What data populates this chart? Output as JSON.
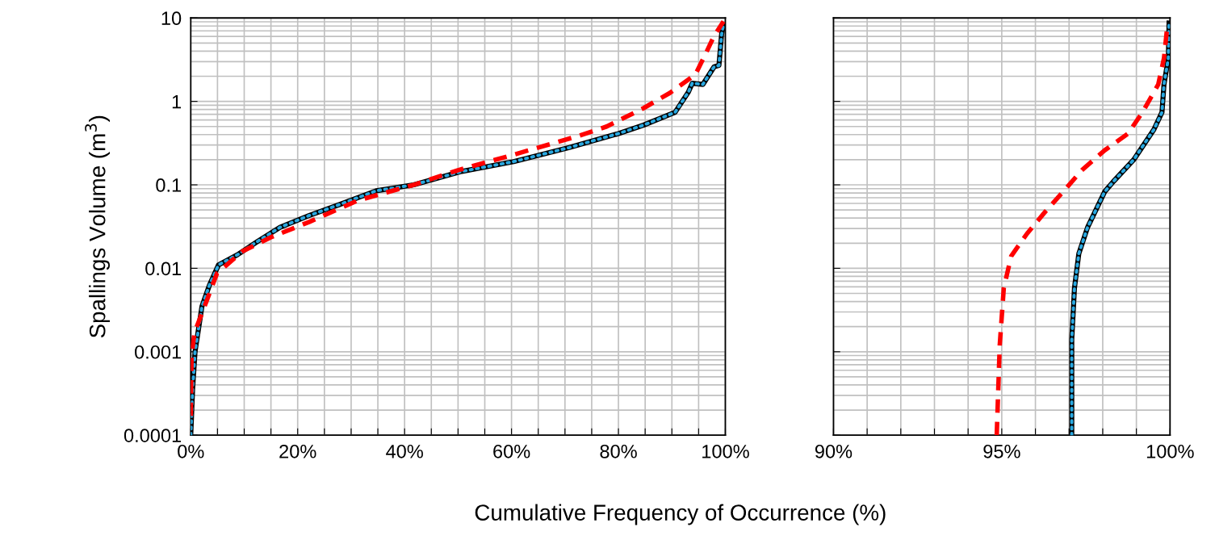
{
  "chart_data": [
    {
      "type": "line",
      "xlabel": "Cumulative Frequency of Occurrence (%)",
      "ylabel": "Spallings Volume (m$^{3}$)",
      "log": "y",
      "grid": true,
      "ylim": [
        0.0001,
        10
      ],
      "yticks": [
        0.0001,
        0.001,
        0.01,
        0.1,
        1,
        10
      ],
      "xlim": [
        0,
        100
      ],
      "xticks": [
        {
          "value": 0,
          "label": "0%"
        },
        {
          "value": 5,
          "label": null
        },
        {
          "value": 10,
          "label": null
        },
        {
          "value": 15,
          "label": null
        },
        {
          "value": 20,
          "label": "20%"
        },
        {
          "value": 25,
          "label": null
        },
        {
          "value": 30,
          "label": null
        },
        {
          "value": 35,
          "label": null
        },
        {
          "value": 40,
          "label": "40%"
        },
        {
          "value": 45,
          "label": null
        },
        {
          "value": 50,
          "label": null
        },
        {
          "value": 55,
          "label": null
        },
        {
          "value": 60,
          "label": "60%"
        },
        {
          "value": 65,
          "label": null
        },
        {
          "value": 70,
          "label": null
        },
        {
          "value": 75,
          "label": null
        },
        {
          "value": 80,
          "label": "80%"
        },
        {
          "value": 85,
          "label": null
        },
        {
          "value": 90,
          "label": null
        },
        {
          "value": 95,
          "label": null
        },
        {
          "value": 100,
          "label": "100%"
        }
      ],
      "series": [
        {
          "color": "#000000",
          "line_style": "solid",
          "x": [
            0,
            0.35,
            0.8,
            2.1,
            3.5,
            5.2,
            8.7,
            12.5,
            16.7,
            22.2,
            27.8,
            34.7,
            41.7,
            50.7,
            60.4,
            70.8,
            79.9,
            84.7,
            90.6,
            93.1,
            93.8,
            95.8,
            97.9,
            98.8,
            99.3,
            99.65
          ],
          "values": [
            0.0001,
            0.00036,
            0.001,
            0.0035,
            0.0063,
            0.011,
            0.0145,
            0.021,
            0.031,
            0.043,
            0.058,
            0.085,
            0.1,
            0.145,
            0.19,
            0.28,
            0.41,
            0.52,
            0.74,
            1.3,
            1.65,
            1.6,
            2.6,
            2.7,
            6.4,
            8.3
          ]
        },
        {
          "color": "#29a8e0",
          "line_style": "dotted",
          "x": [
            0,
            0.35,
            0.8,
            2.1,
            3.5,
            5.2,
            8.7,
            12.5,
            16.7,
            22.2,
            27.8,
            34.7,
            41.7,
            50.7,
            60.4,
            70.8,
            79.9,
            84.7,
            90.6,
            93.1,
            93.8,
            95.8,
            97.9,
            98.8,
            99.3,
            99.65
          ],
          "values": [
            0.0001,
            0.00036,
            0.001,
            0.0035,
            0.0063,
            0.011,
            0.0145,
            0.021,
            0.031,
            0.043,
            0.058,
            0.085,
            0.1,
            0.145,
            0.19,
            0.28,
            0.41,
            0.52,
            0.74,
            1.3,
            1.65,
            1.6,
            2.6,
            2.7,
            6.4,
            8.3
          ]
        },
        {
          "color": "#ff0000",
          "line_style": "dashed",
          "x": [
            0,
            0.15,
            0.7,
            2.8,
            4.9,
            9.7,
            15.3,
            22.2,
            31.25,
            41.7,
            50,
            60.4,
            72.2,
            77.8,
            84.7,
            89.6,
            94.4,
            96.2,
            97.9,
            99.65
          ],
          "values": [
            0.00017,
            0.0009,
            0.0017,
            0.0038,
            0.0087,
            0.016,
            0.024,
            0.036,
            0.065,
            0.1,
            0.15,
            0.23,
            0.38,
            0.5,
            0.83,
            1.26,
            2.1,
            3.6,
            6.1,
            9.1
          ]
        }
      ]
    },
    {
      "type": "line",
      "log": "y",
      "grid": true,
      "tick_labels": "x",
      "ylim": [
        0.0001,
        10
      ],
      "yticks": [
        0.0001,
        0.001,
        0.01,
        0.1,
        1,
        10
      ],
      "xlim": [
        90,
        100
      ],
      "xticks": [
        {
          "value": 90,
          "label": "90%"
        },
        {
          "value": 91,
          "label": null
        },
        {
          "value": 92,
          "label": null
        },
        {
          "value": 93,
          "label": null
        },
        {
          "value": 94,
          "label": null
        },
        {
          "value": 95,
          "label": "95%"
        },
        {
          "value": 96,
          "label": null
        },
        {
          "value": 97,
          "label": null
        },
        {
          "value": 98,
          "label": null
        },
        {
          "value": 99,
          "label": null
        },
        {
          "value": 100,
          "label": "100%"
        }
      ],
      "series": [
        {
          "color": "#000000",
          "line_style": "solid",
          "x": [
            97.08,
            97.08,
            97.16,
            97.29,
            97.55,
            98.06,
            98.32,
            98.92,
            99.52,
            99.76,
            99.82,
            99.95,
            99.97
          ],
          "values": [
            0.0001,
            0.0014,
            0.0058,
            0.015,
            0.031,
            0.083,
            0.11,
            0.2,
            0.46,
            0.74,
            1.6,
            3.3,
            8.7
          ]
        },
        {
          "color": "#29a8e0",
          "line_style": "dotted",
          "x": [
            97.08,
            97.08,
            97.16,
            97.29,
            97.55,
            98.06,
            98.32,
            98.92,
            99.52,
            99.76,
            99.82,
            99.95,
            99.97
          ],
          "values": [
            0.0001,
            0.0014,
            0.0058,
            0.015,
            0.031,
            0.083,
            0.11,
            0.2,
            0.46,
            0.74,
            1.6,
            3.3,
            8.7
          ]
        },
        {
          "color": "#ff0000",
          "line_style": "dashed",
          "x": [
            94.85,
            94.94,
            95.06,
            95.28,
            95.75,
            96.26,
            96.78,
            97.38,
            98.06,
            98.75,
            99.18,
            99.65,
            99.82,
            99.91
          ],
          "values": [
            0.0001,
            0.0012,
            0.0058,
            0.014,
            0.026,
            0.046,
            0.079,
            0.15,
            0.26,
            0.41,
            0.74,
            1.6,
            3.3,
            7.4
          ]
        }
      ]
    }
  ]
}
